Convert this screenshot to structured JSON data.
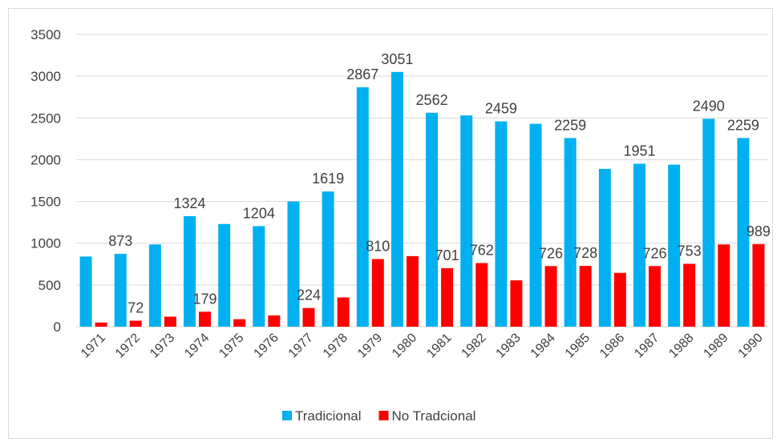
{
  "chart_data": {
    "type": "bar",
    "categories": [
      "1971",
      "1972",
      "1973",
      "1974",
      "1975",
      "1976",
      "1977",
      "1978",
      "1979",
      "1980",
      "1981",
      "1982",
      "1983",
      "1984",
      "1985",
      "1986",
      "1987",
      "1988",
      "1989",
      "1990"
    ],
    "series": [
      {
        "name": "Tradicional",
        "color": "#00b0f0",
        "values": [
          840,
          873,
          985,
          1324,
          1230,
          1204,
          1500,
          1619,
          2867,
          3051,
          2562,
          2530,
          2459,
          2430,
          2259,
          1890,
          1951,
          1940,
          2490,
          2259
        ],
        "value_labels": [
          null,
          "873",
          null,
          "1324",
          null,
          "1204",
          null,
          "1619",
          "2867",
          "3051",
          "2562",
          null,
          "2459",
          null,
          "2259",
          null,
          "1951",
          null,
          "2490",
          "2259"
        ]
      },
      {
        "name": "No Tradcional",
        "color": "#ff0000",
        "values": [
          50,
          72,
          120,
          179,
          90,
          135,
          224,
          350,
          810,
          845,
          701,
          762,
          555,
          726,
          728,
          645,
          726,
          753,
          985,
          989
        ],
        "value_labels": [
          null,
          "72",
          null,
          "179",
          null,
          null,
          "224",
          null,
          "810",
          null,
          "701",
          "762",
          null,
          "726",
          "728",
          null,
          "726",
          "753",
          null,
          "989"
        ]
      }
    ],
    "ylim": [
      0,
      3500
    ],
    "yticks": [
      0,
      500,
      1000,
      1500,
      2000,
      2500,
      3000,
      3500
    ],
    "grid": true,
    "legend": "bottom"
  }
}
